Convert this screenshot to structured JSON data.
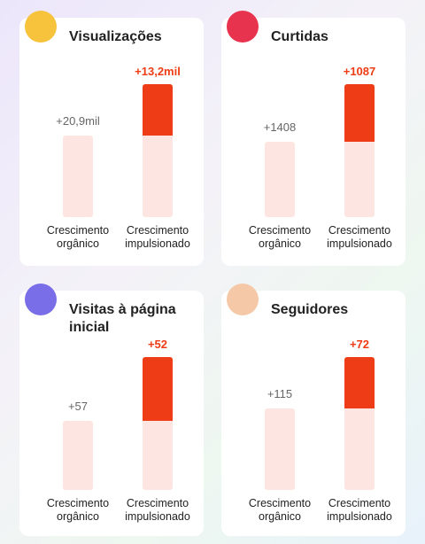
{
  "chart_data": [
    {
      "type": "bar",
      "title": "Visualizações",
      "categories": [
        "Crescimento orgânico",
        "Crescimento impulsionado"
      ],
      "values": [
        20.9,
        13.2
      ],
      "value_labels": [
        "+20,9mil",
        "+13,2mil"
      ],
      "colors": [
        "#fde6e2",
        "#ee3d16"
      ]
    },
    {
      "type": "bar",
      "title": "Curtidas",
      "categories": [
        "Crescimento orgânico",
        "Crescimento impulsionado"
      ],
      "values": [
        1408,
        1087
      ],
      "value_labels": [
        "+1408",
        "+1087"
      ],
      "colors": [
        "#fde6e2",
        "#ee3d16"
      ]
    },
    {
      "type": "bar",
      "title": "Visitas à página inicial",
      "categories": [
        "Crescimento orgânico",
        "Crescimento impulsionado"
      ],
      "values": [
        57,
        52
      ],
      "value_labels": [
        "+57",
        "+52"
      ],
      "colors": [
        "#fde6e2",
        "#ee3d16"
      ]
    },
    {
      "type": "bar",
      "title": "Seguidores",
      "categories": [
        "Crescimento orgânico",
        "Crescimento impulsionado"
      ],
      "values": [
        115,
        72
      ],
      "value_labels": [
        "+115",
        "+72"
      ],
      "colors": [
        "#fde6e2",
        "#ee3d16"
      ]
    }
  ]
}
